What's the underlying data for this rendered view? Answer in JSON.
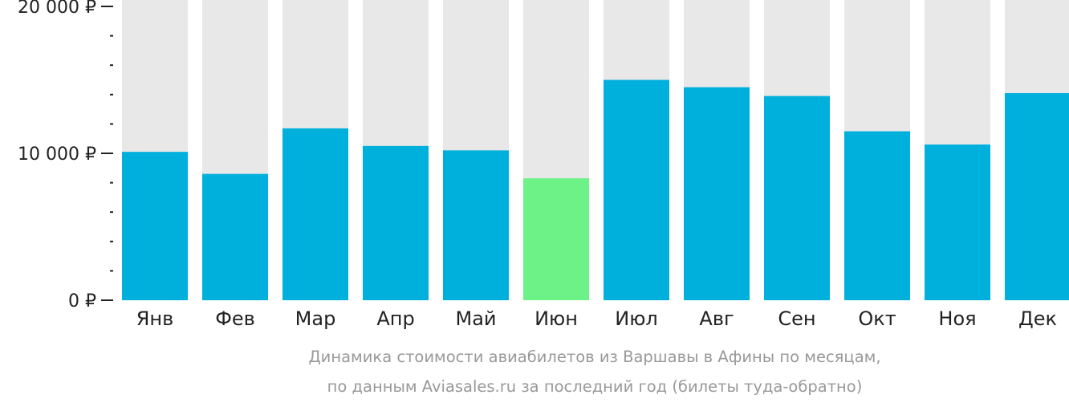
{
  "chart_data": {
    "type": "bar",
    "categories": [
      "Янв",
      "Фев",
      "Мар",
      "Апр",
      "Май",
      "Июн",
      "Июл",
      "Авг",
      "Сен",
      "Окт",
      "Ноя",
      "Дек"
    ],
    "values": [
      10100,
      8600,
      11700,
      10500,
      10200,
      8300,
      15000,
      14500,
      13900,
      11500,
      10600,
      14100
    ],
    "highlight_category": "Июн",
    "ylim": [
      0,
      20000
    ],
    "yticks": [
      {
        "value": 0,
        "label": "0 ₽"
      },
      {
        "value": 10000,
        "label": "10 000 ₽"
      },
      {
        "value": 20000,
        "label": "20 000 ₽"
      }
    ],
    "minor_tick_step": 2000,
    "caption_lines": [
      "Динамика стоимости авиабилетов из Варшавы в Афины по месяцам,",
      "по данным Aviasales.ru за последний год (билеты туда-обратно)"
    ],
    "colors": {
      "bar": "#00b0dc",
      "highlight": "#6cf286",
      "background_column": "#e8e8e8",
      "axis": "#222222",
      "caption": "#999999"
    },
    "grid": false,
    "legend": "none"
  }
}
